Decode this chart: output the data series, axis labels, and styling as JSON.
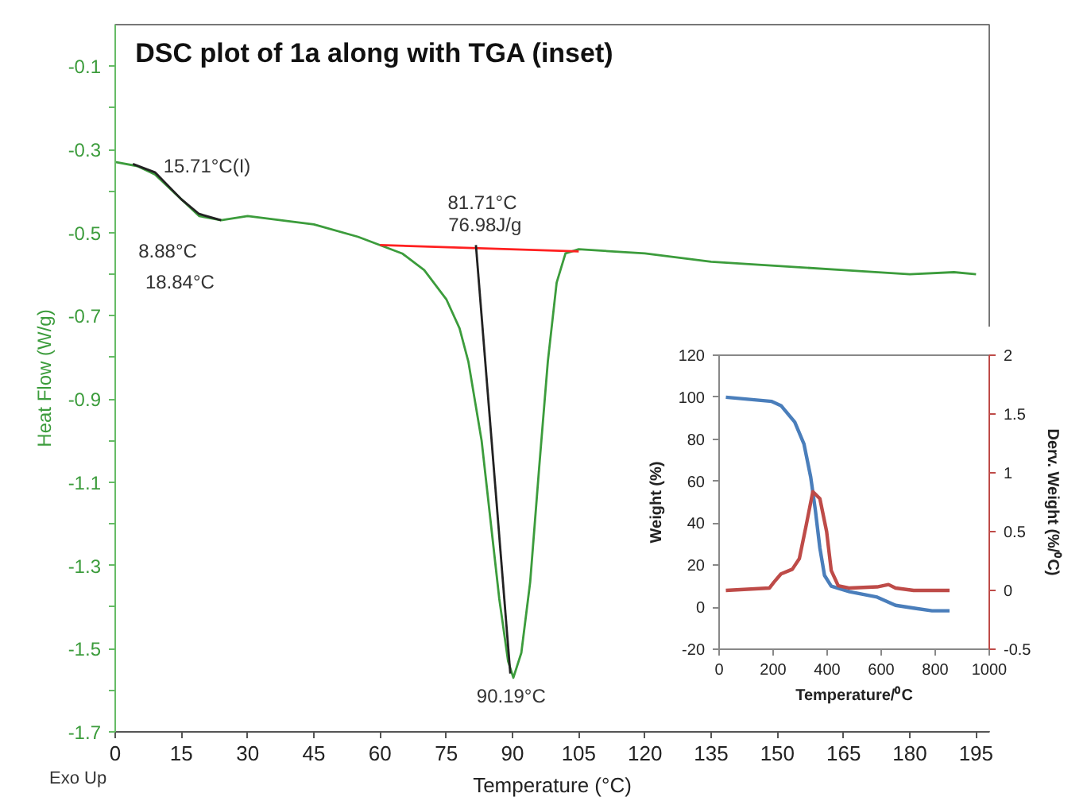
{
  "chart_data": [
    {
      "type": "line",
      "title": "DSC plot  of 1a along with TGA (inset)",
      "xlabel": "Temperature (°C)",
      "ylabel": "Heat Flow (W/g)",
      "xlim": [
        0,
        198
      ],
      "xticks": [
        0,
        15,
        30,
        45,
        60,
        75,
        90,
        105,
        120,
        135,
        150,
        165,
        180,
        195
      ],
      "ylim": [
        -1.7,
        0.0
      ],
      "yticks": [
        -0.1,
        {
          "value": -0.2,
          "label": null
        },
        -0.3,
        {
          "value": -0.4,
          "label": null
        },
        -0.5,
        {
          "value": -0.6,
          "label": null
        },
        -0.7,
        {
          "value": -0.8,
          "label": null
        },
        -0.9,
        {
          "value": -1.0,
          "label": null
        },
        -1.1,
        {
          "value": -1.2,
          "label": null
        },
        -1.3,
        {
          "value": -1.4,
          "label": null
        },
        -1.5,
        {
          "value": -1.6,
          "label": null
        },
        -1.7
      ],
      "grid": false,
      "series": [
        {
          "color": "#3c9c3c",
          "x": [
            0,
            5,
            9,
            15,
            19,
            24,
            30,
            45,
            55,
            60,
            65,
            70,
            75,
            78,
            80,
            83,
            85,
            87,
            89,
            90.19,
            92,
            94,
            96,
            98,
            100,
            102,
            105,
            120,
            135,
            150,
            165,
            180,
            190,
            195
          ],
          "values": [
            -0.33,
            -0.34,
            -0.36,
            -0.42,
            -0.46,
            -0.47,
            -0.46,
            -0.48,
            -0.51,
            -0.53,
            -0.55,
            -0.59,
            -0.66,
            -0.73,
            -0.81,
            -1.0,
            -1.19,
            -1.38,
            -1.53,
            -1.57,
            -1.51,
            -1.34,
            -1.07,
            -0.81,
            -0.62,
            -0.55,
            -0.54,
            -0.55,
            -0.57,
            -0.58,
            -0.59,
            -0.6,
            -0.595,
            -0.6
          ]
        },
        {
          "color": "#222222",
          "x": [
            4,
            9,
            15,
            19,
            24
          ],
          "values": [
            -0.335,
            -0.355,
            -0.42,
            -0.455,
            -0.47
          ]
        },
        {
          "color": "#ff2020",
          "x": [
            60,
            105
          ],
          "values": [
            -0.53,
            -0.545
          ]
        },
        {
          "color": "#222222",
          "x": [
            81.71,
            89.5
          ],
          "values": [
            -0.53,
            -1.56
          ]
        }
      ],
      "annotations": [
        "15.71°C(I)",
        "8.88°C",
        "18.84°C",
        "81.71°C",
        "76.98J/g",
        "90.19°C",
        "Exo Up"
      ]
    },
    {
      "type": "line",
      "xlabel": "Temperature/⁰C",
      "ylabel": "Weight (%)",
      "y2label": "Derv. Weight (%/⁰C)",
      "xlim": [
        0,
        1000
      ],
      "xticks": [
        0,
        200,
        400,
        600,
        800,
        1000
      ],
      "ylim": [
        -20,
        120
      ],
      "yticks": [
        -20,
        0,
        20,
        40,
        60,
        80,
        100,
        120
      ],
      "y2lim": [
        -0.5,
        2
      ],
      "y2ticks": [
        -0.5,
        0,
        0.5,
        1,
        1.5,
        2
      ],
      "grid": false,
      "series": [
        {
          "color": "#4a7ebb",
          "x": [
            25,
            195,
            229,
            280,
            314,
            339,
            356,
            373,
            390,
            415,
            483,
            585,
            653,
            720,
            788,
            853
          ],
          "values": [
            100,
            98,
            96,
            88.2,
            77.8,
            62,
            46.5,
            28.2,
            15.2,
            10,
            7.4,
            4.8,
            0.9,
            -0.4,
            -1.7,
            -1.7
          ]
        },
        {
          "color": "#be4b48",
          "axis": "y2",
          "x": [
            25,
            186,
            203,
            229,
            271,
            297,
            322,
            347,
            373,
            398,
            415,
            441,
            483,
            585,
            627,
            653,
            720,
            853
          ],
          "values": [
            0,
            0.02,
            0.07,
            0.14,
            0.18,
            0.27,
            0.55,
            0.84,
            0.78,
            0.5,
            0.17,
            0.04,
            0.02,
            0.03,
            0.05,
            0.02,
            0,
            0
          ]
        }
      ]
    }
  ]
}
